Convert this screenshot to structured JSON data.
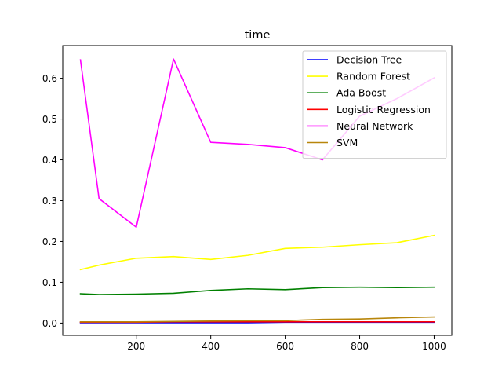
{
  "chart_data": {
    "type": "line",
    "title": "time",
    "xlabel": "",
    "ylabel": "",
    "xlim": [
      2.5,
      1047.5
    ],
    "ylim": [
      -0.03,
      0.68
    ],
    "xticks": [
      200,
      400,
      600,
      800,
      1000
    ],
    "yticks": [
      0.0,
      0.1,
      0.2,
      0.3,
      0.4,
      0.5,
      0.6
    ],
    "ytick_labels": [
      "0.0",
      "0.1",
      "0.2",
      "0.3",
      "0.4",
      "0.5",
      "0.6"
    ],
    "grid": false,
    "legend_position": "top-right",
    "x": [
      50,
      100,
      200,
      300,
      400,
      500,
      600,
      700,
      800,
      900,
      1000
    ],
    "series": [
      {
        "name": "Decision Tree",
        "color": "#0000ff",
        "values": [
          0.001,
          0.001,
          0.001,
          0.001,
          0.001,
          0.001,
          0.002,
          0.002,
          0.002,
          0.002,
          0.002
        ]
      },
      {
        "name": "Random Forest",
        "color": "#ffff00",
        "values": [
          0.131,
          0.142,
          0.159,
          0.163,
          0.156,
          0.166,
          0.183,
          0.186,
          0.192,
          0.197,
          0.215
        ]
      },
      {
        "name": "Ada Boost",
        "color": "#008000",
        "values": [
          0.072,
          0.07,
          0.071,
          0.073,
          0.08,
          0.084,
          0.082,
          0.087,
          0.088,
          0.087,
          0.088
        ]
      },
      {
        "name": "Logistic Regression",
        "color": "#ff0000",
        "values": [
          0.002,
          0.002,
          0.002,
          0.003,
          0.003,
          0.003,
          0.003,
          0.003,
          0.003,
          0.003,
          0.003
        ]
      },
      {
        "name": "Neural Network",
        "color": "#ff00ff",
        "values": [
          0.645,
          0.305,
          0.235,
          0.647,
          0.443,
          0.438,
          0.43,
          0.4,
          0.507,
          0.55,
          0.601
        ]
      },
      {
        "name": "SVM",
        "color": "#b8860b",
        "values": [
          0.003,
          0.003,
          0.003,
          0.004,
          0.005,
          0.006,
          0.006,
          0.009,
          0.01,
          0.013,
          0.015
        ]
      }
    ]
  }
}
